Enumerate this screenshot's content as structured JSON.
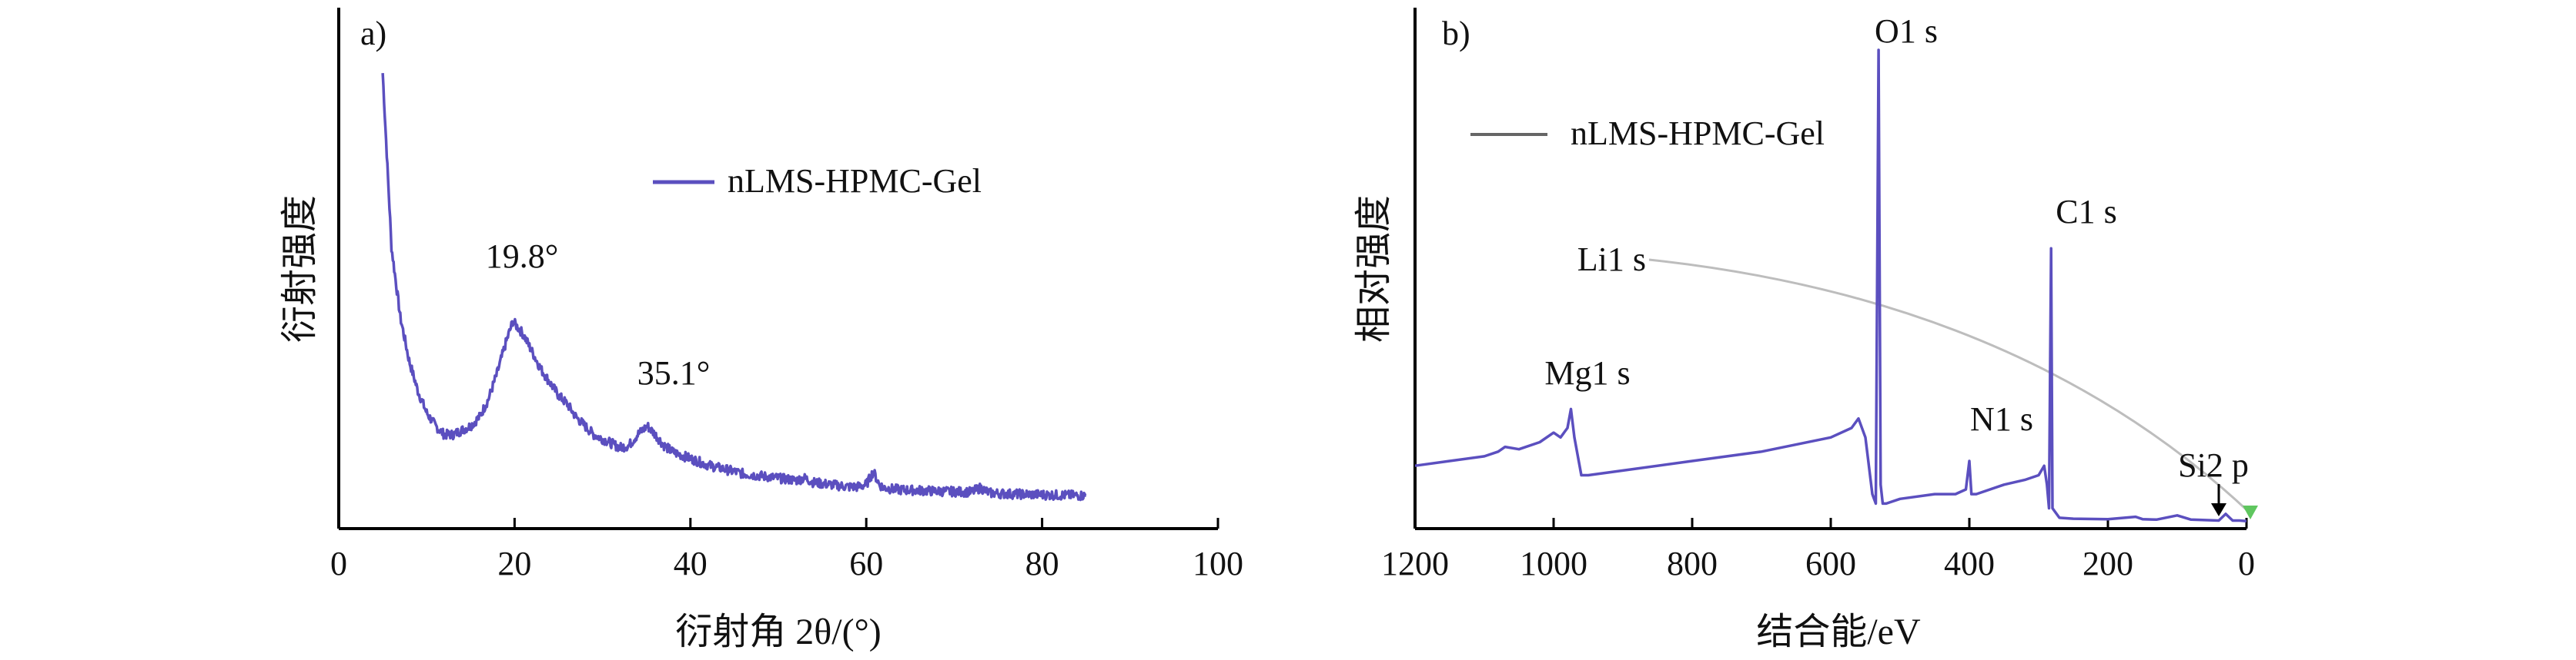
{
  "chart_data": [
    {
      "panel_label": "a)",
      "type": "line",
      "xlabel": "衍射角 2θ/(°)",
      "ylabel": "衍射强度",
      "xlim": [
        0,
        100
      ],
      "xticks": [
        0,
        20,
        40,
        60,
        80,
        100
      ],
      "series": [
        {
          "name": "nLMS-HPMC-Gel",
          "color": "#5b4fbf",
          "x": [
            5,
            6,
            7,
            8,
            9,
            10,
            11,
            12,
            13,
            14,
            15,
            16,
            17,
            18,
            19,
            19.8,
            21,
            22,
            23,
            24,
            25,
            26,
            27,
            28,
            29,
            30,
            31,
            32,
            33,
            34,
            35.1,
            36,
            37,
            38,
            40,
            42,
            44,
            46,
            48,
            50,
            52,
            53,
            54,
            56,
            58,
            59,
            60,
            60.8,
            61.5,
            62,
            63,
            64,
            66,
            68,
            70,
            72,
            73,
            74,
            76,
            78,
            80,
            82,
            85
          ],
          "y": [
            100,
            60,
            44,
            34,
            27,
            22,
            19,
            17,
            17,
            18,
            19,
            21,
            25,
            31,
            38,
            43,
            40,
            36,
            32,
            29,
            26,
            24,
            21,
            19,
            17,
            16,
            15,
            14,
            14.5,
            17,
            19,
            17,
            14.5,
            13,
            11.5,
            10,
            9,
            8,
            7.5,
            7,
            6.5,
            7,
            6,
            5.5,
            5,
            5,
            5.5,
            8.5,
            5.5,
            4.8,
            4.5,
            4.3,
            4.2,
            4,
            3.9,
            3.8,
            4.8,
            3.6,
            3.4,
            3.3,
            3.2,
            3.1,
            3
          ]
        }
      ],
      "annotations": [
        {
          "text": "19.8°",
          "x": 19.8,
          "y": 43
        },
        {
          "text": "35.1°",
          "x": 35.1,
          "y": 19
        }
      ],
      "legend": "top-right",
      "grid": false
    },
    {
      "panel_label": "b)",
      "type": "line",
      "xlabel": "结合能/eV",
      "ylabel": "相对强度",
      "xlim": [
        1200,
        0
      ],
      "xticks": [
        1200,
        1000,
        800,
        600,
        400,
        200,
        0
      ],
      "series": [
        {
          "name": "nLMS-HPMC-Gel",
          "color": "#5b4fbf",
          "x": [
            1200,
            1150,
            1100,
            1080,
            1070,
            1050,
            1020,
            1000,
            990,
            980,
            975,
            970,
            960,
            950,
            900,
            800,
            700,
            600,
            570,
            560,
            550,
            540,
            535,
            531,
            528,
            525,
            520,
            500,
            450,
            420,
            405,
            400,
            397,
            390,
            350,
            320,
            300,
            292,
            288,
            285,
            282,
            280,
            270,
            250,
            200,
            160,
            150,
            130,
            100,
            80,
            60,
            40,
            30,
            20,
            10,
            0
          ],
          "y": [
            12,
            13,
            14,
            15,
            16,
            15.5,
            17,
            19,
            18,
            20,
            24,
            18,
            10,
            10,
            11,
            13,
            15,
            18,
            20,
            22,
            18,
            6,
            4,
            100,
            8,
            4,
            4,
            5,
            6,
            6,
            7,
            13,
            6,
            6,
            8,
            9,
            10,
            12,
            8,
            3,
            58,
            3,
            1,
            0.8,
            0.7,
            1.2,
            0.7,
            0.6,
            1.5,
            0.6,
            0.5,
            0.4,
            1.8,
            0.4,
            0.4,
            0.3
          ]
        }
      ],
      "peak_labels": [
        "O1 s",
        "C1 s",
        "Li1 s",
        "Mg1 s",
        "N1 s",
        "Si2 p"
      ],
      "legend": "top-left",
      "grid": false
    }
  ]
}
